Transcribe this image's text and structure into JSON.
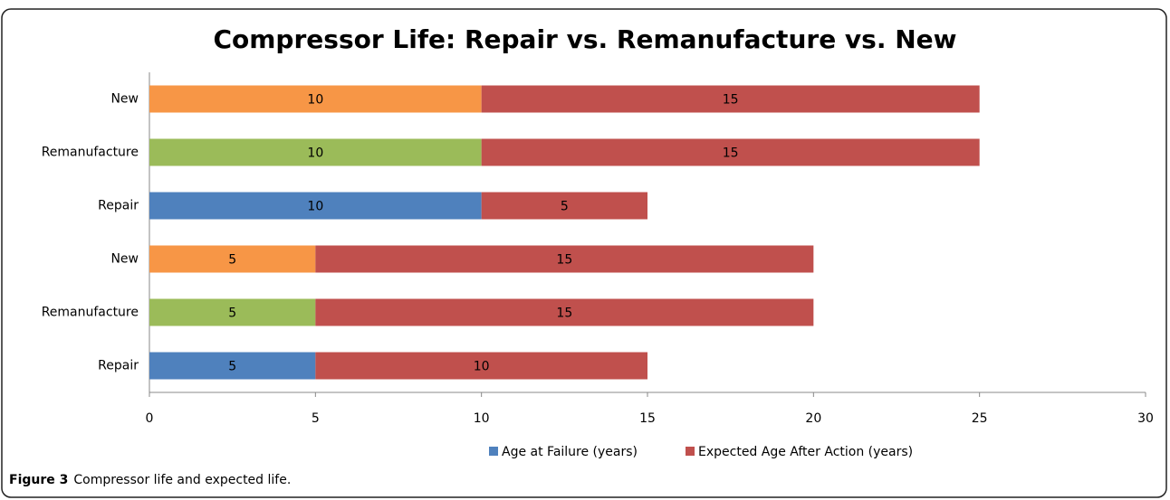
{
  "chart_data": {
    "type": "stacked-barh",
    "title": "Compressor Life: Repair vs. Remanufacture vs. New",
    "categories": [
      "New",
      "Remanufacture",
      "Repair",
      "New",
      "Remanufacture",
      "Repair"
    ],
    "series": [
      {
        "name": "Age at Failure (years)",
        "color": "#4f81bd",
        "colors": [
          "#f79646",
          "#9bbb59",
          "#4f81bd",
          "#f79646",
          "#9bbb59",
          "#4f81bd"
        ],
        "values": [
          10,
          10,
          10,
          5,
          5,
          5
        ]
      },
      {
        "name": "Expected Age After Action (years)",
        "color": "#c0504d",
        "values": [
          15,
          15,
          5,
          15,
          15,
          10
        ]
      }
    ],
    "xlim": [
      0,
      30
    ],
    "xticks": [
      0,
      5,
      10,
      15,
      20,
      25,
      30
    ],
    "grid": false,
    "legend": "bottom"
  },
  "caption": {
    "label": "Figure 3",
    "text": "Compressor life and expected life."
  }
}
